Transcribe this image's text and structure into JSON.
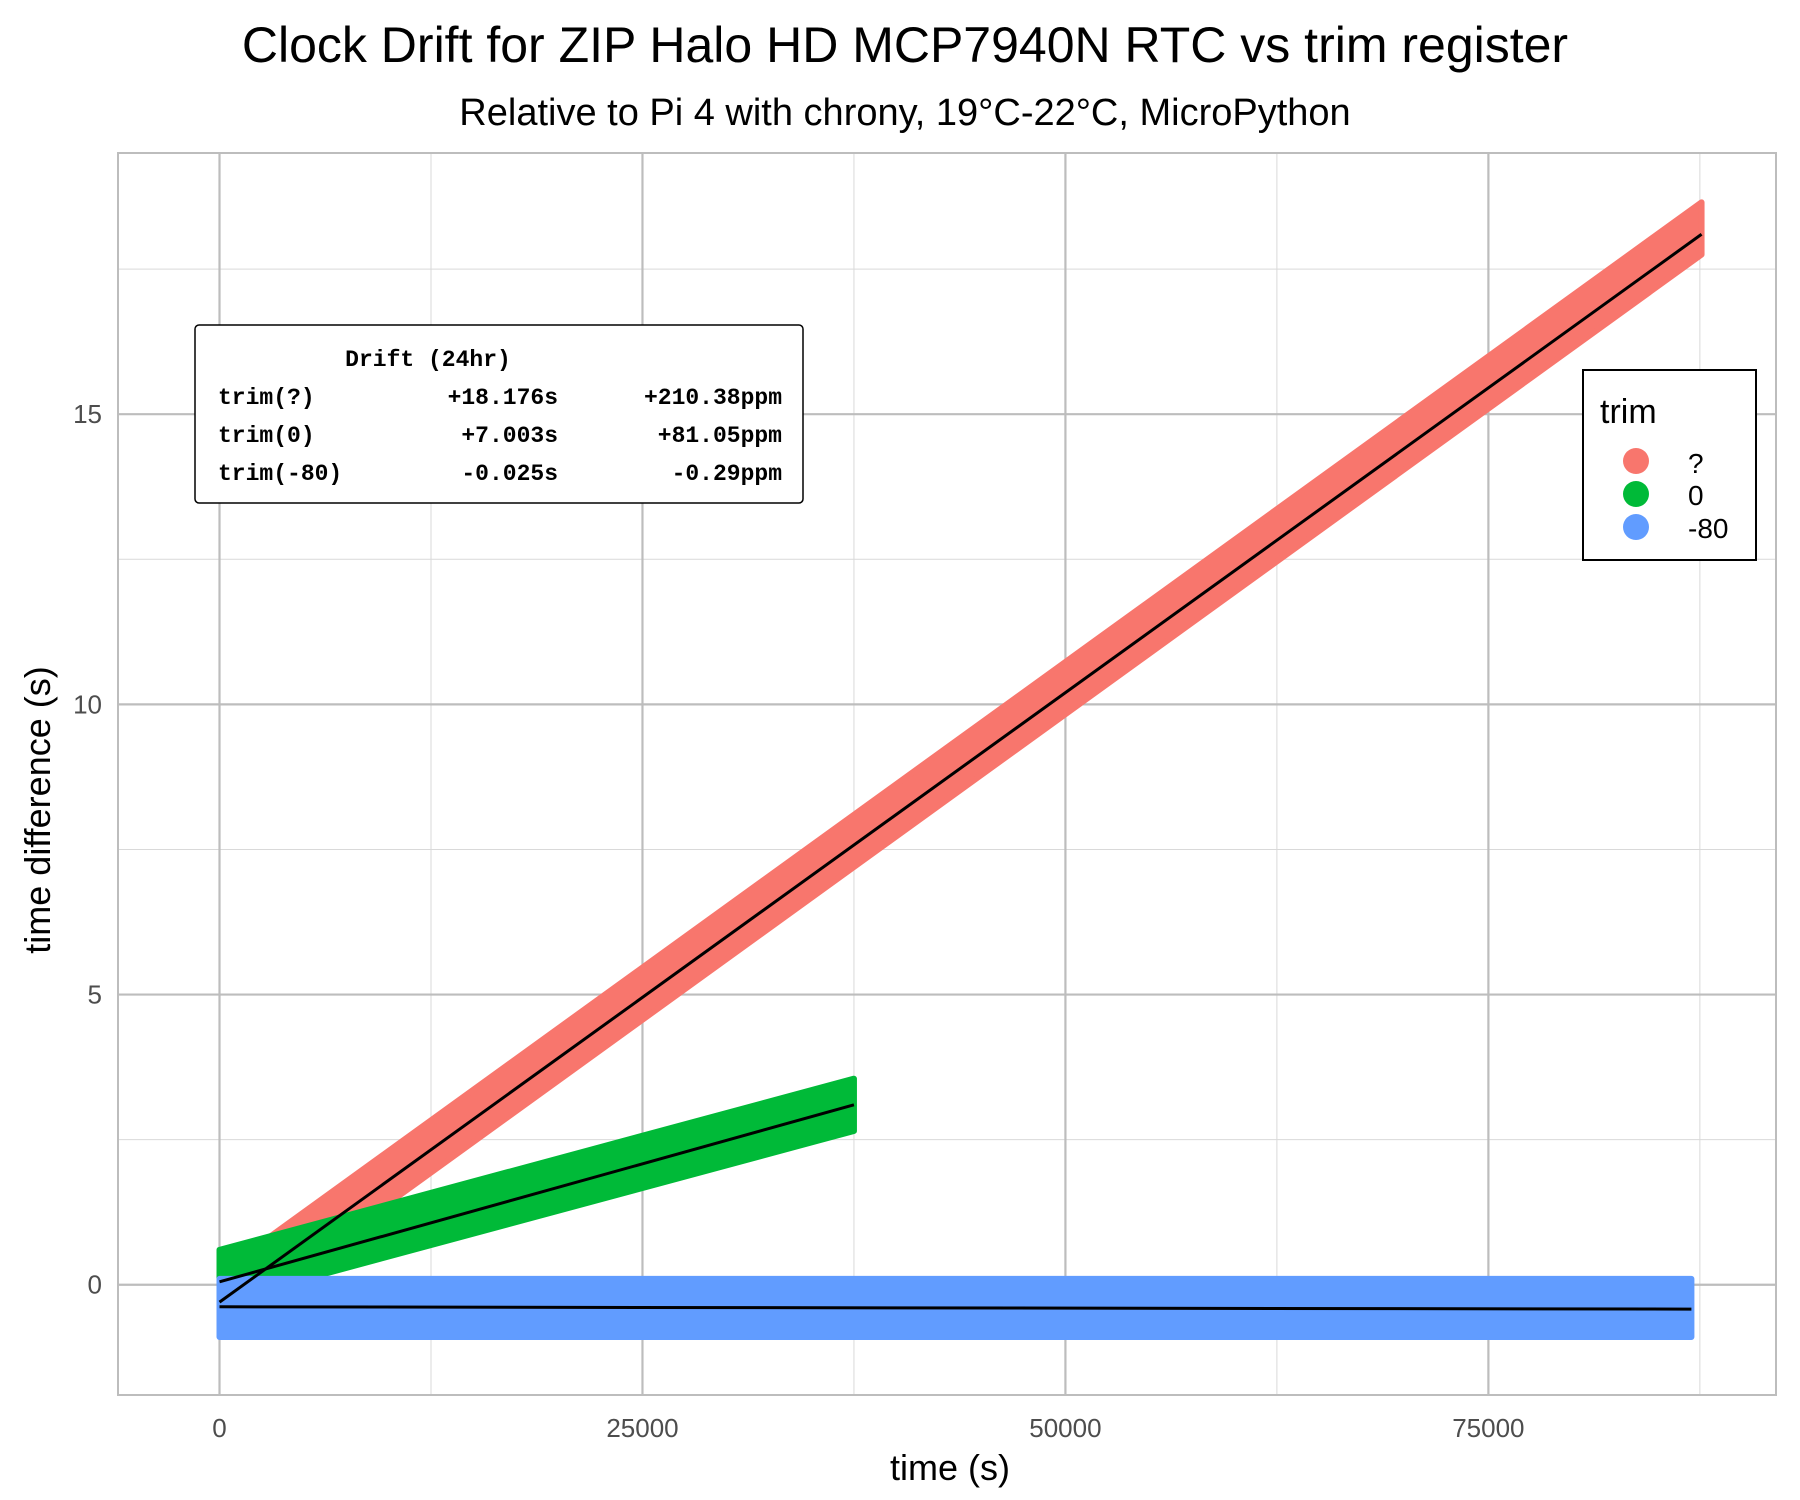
{
  "chart_data": {
    "type": "scatter",
    "title": "Clock Drift for ZIP Halo HD MCP7940N RTC vs trim register",
    "subtitle": "Relative to Pi 4 with chrony, 19°C-22°C, MicroPython",
    "xlabel": "time (s)",
    "ylabel": "time difference (s)",
    "xlim": [
      -6000,
      92000
    ],
    "ylim": [
      -1.9,
      19.5
    ],
    "x_ticks": [
      0,
      25000,
      50000,
      75000
    ],
    "x_tick_labels": [
      "0",
      "25000",
      "50000",
      "75000"
    ],
    "y_ticks": [
      0,
      5,
      10,
      15
    ],
    "y_tick_labels": [
      "0",
      "5",
      "10",
      "15"
    ],
    "grid": true,
    "legend": {
      "title": "trim",
      "placement": "right",
      "entries": [
        "?",
        "0",
        "-80"
      ]
    },
    "series": [
      {
        "name": "?",
        "color": "#F8766D",
        "x_range": [
          0,
          87600
        ],
        "band_center": [
          [
            0,
            -0.25
          ],
          [
            87600,
            18.2
          ]
        ],
        "band_halfwidth": 0.45,
        "fit_line": [
          [
            0,
            -0.3
          ],
          [
            87600,
            18.1
          ]
        ]
      },
      {
        "name": "0",
        "color": "#00BA38",
        "x_range": [
          0,
          37500
        ],
        "band_center": [
          [
            0,
            0.15
          ],
          [
            37500,
            3.1
          ]
        ],
        "band_halfwidth": 0.45,
        "fit_line": [
          [
            0,
            0.05
          ],
          [
            37500,
            3.1
          ]
        ]
      },
      {
        "name": "-80",
        "color": "#619CFF",
        "x_range": [
          0,
          87000
        ],
        "band_center": [
          [
            0,
            -0.4
          ],
          [
            87000,
            -0.4
          ]
        ],
        "band_halfwidth": 0.5,
        "fit_line": [
          [
            0,
            -0.38
          ],
          [
            87000,
            -0.42
          ]
        ]
      }
    ],
    "annotation": {
      "header": "Drift (24hr)",
      "rows": [
        {
          "label": "trim(?)",
          "seconds": "+18.176s",
          "ppm": "+210.38ppm"
        },
        {
          "label": "trim(0)",
          "seconds": "+7.003s",
          "ppm": "+81.05ppm"
        },
        {
          "label": "trim(-80)",
          "seconds": "-0.025s",
          "ppm": "-0.29ppm"
        }
      ]
    }
  }
}
